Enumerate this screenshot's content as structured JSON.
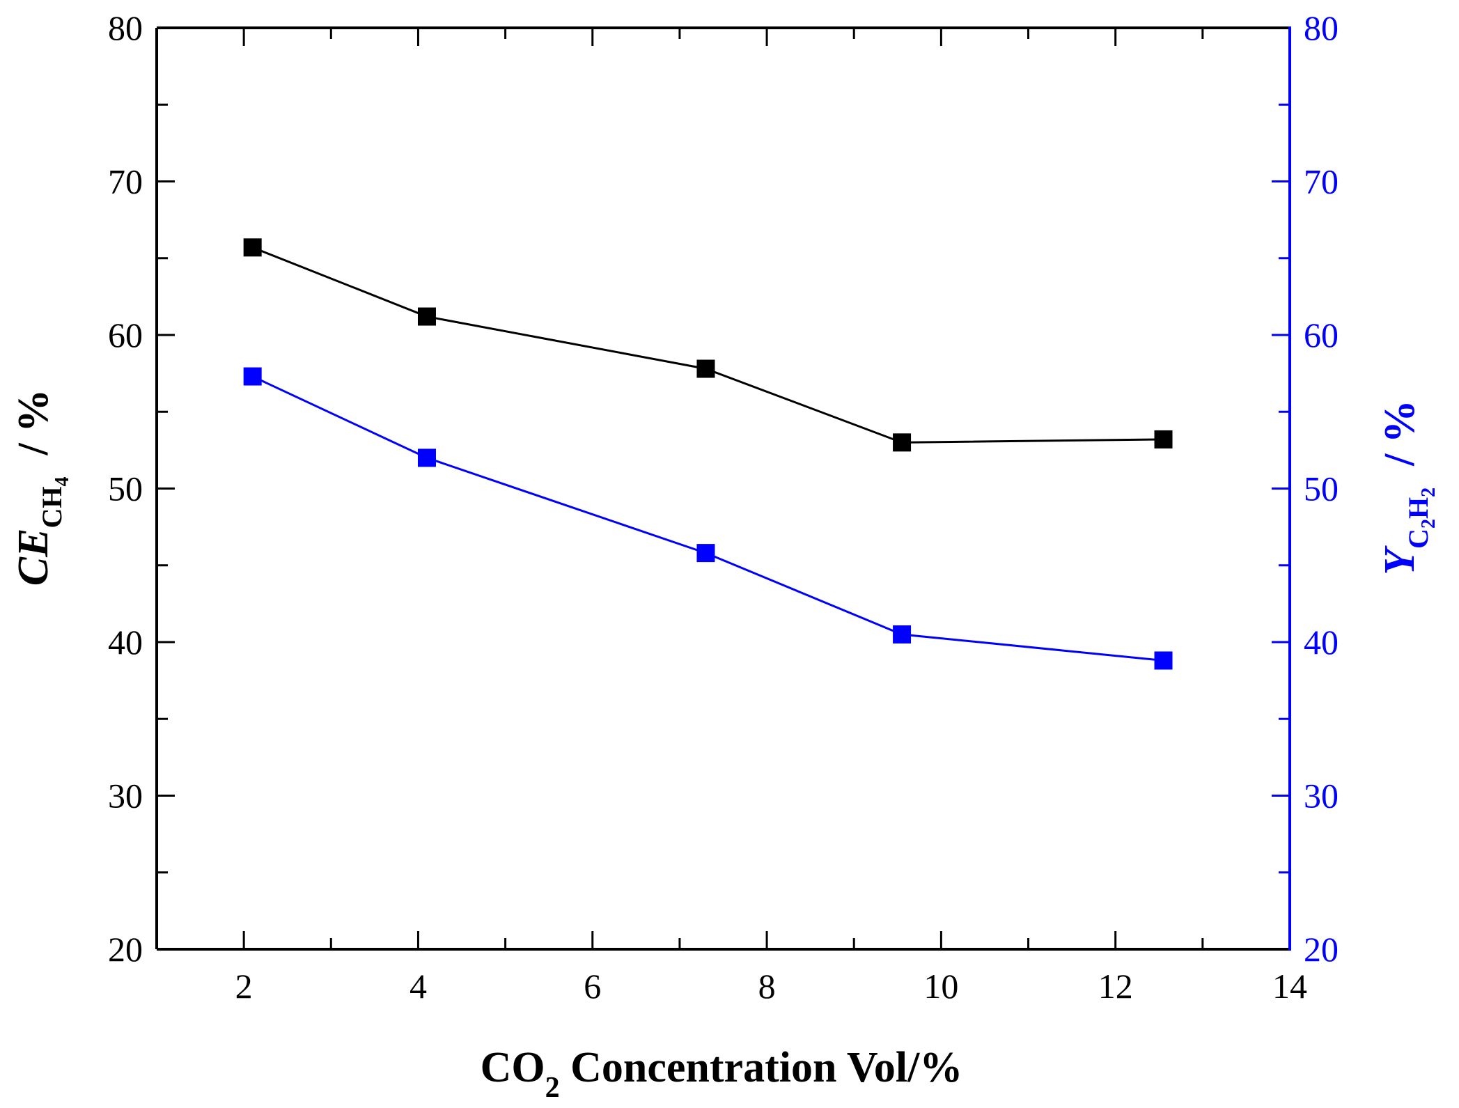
{
  "chart_data": {
    "type": "line",
    "title": "",
    "xlabel": {
      "main": "CO",
      "sub": "2",
      "rest": " Concentration Vol/%"
    },
    "ylabel_left": {
      "main": "CE",
      "sub_base": "CH",
      "sub_sub": "4",
      "unit": "  / %"
    },
    "ylabel_right": {
      "main": "Y",
      "sub_c": "C",
      "sub_c_n": "2",
      "sub_h": "H",
      "sub_h_n": "2",
      "unit": "  / %"
    },
    "xlim": [
      1,
      14
    ],
    "ylim_left": [
      20,
      80
    ],
    "ylim_right": [
      20,
      80
    ],
    "x_ticks": [
      "2",
      "4",
      "6",
      "8",
      "10",
      "12",
      "14"
    ],
    "y_ticks_left": [
      "20",
      "30",
      "40",
      "50",
      "60",
      "70",
      "80"
    ],
    "y_ticks_right": [
      "20",
      "30",
      "40",
      "50",
      "60",
      "70",
      "80"
    ],
    "series": [
      {
        "name": "CE CH4",
        "axis": "left",
        "color": "#000000",
        "marker": "square",
        "x": [
          2.1,
          4.1,
          7.3,
          9.55,
          12.55
        ],
        "y": [
          65.7,
          61.2,
          57.8,
          53.0,
          53.2
        ]
      },
      {
        "name": "Y C2H2",
        "axis": "right",
        "color": "#0000ff",
        "marker": "square",
        "x": [
          2.1,
          4.1,
          7.3,
          9.55,
          12.55
        ],
        "y": [
          57.3,
          52.0,
          45.8,
          40.5,
          38.8
        ]
      }
    ],
    "right_axis_color": "#0000ff"
  }
}
